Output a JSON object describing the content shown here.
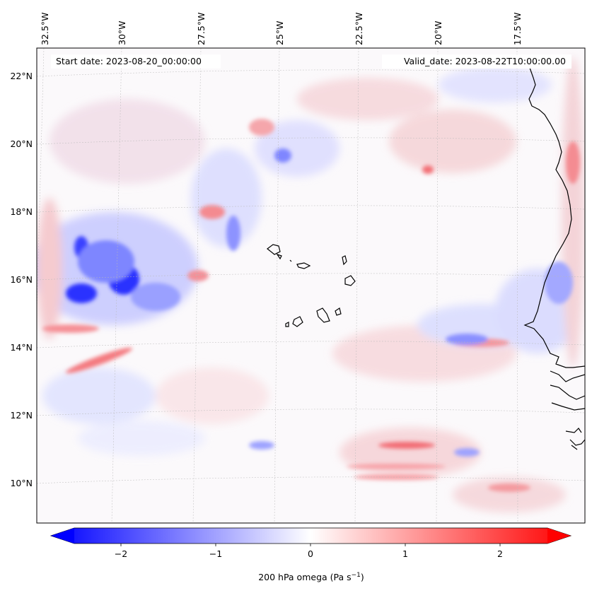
{
  "header": {
    "start_date": "Start date: 2023-08-20_00:00:00",
    "valid_date": "Valid_date: 2023-08-22T10:00:00.00"
  },
  "lon_labels": [
    "32.5°W",
    "30°W",
    "27.5°W",
    "25°W",
    "22.5°W",
    "20°W",
    "17.5°W"
  ],
  "lat_labels": [
    "22°N",
    "20°N",
    "18°N",
    "16°N",
    "14°N",
    "12°N",
    "10°N"
  ],
  "colorbar": {
    "ticks": [
      "−2",
      "−1",
      "0",
      "1",
      "2"
    ],
    "label": "200 hPa omega (Pa s",
    "label_sup": "−1",
    "label_close": ")",
    "range": [
      -2.6,
      2.6
    ],
    "colormap": "bwr",
    "min_color": "#0000ff",
    "mid_color": "#ffffff",
    "max_color": "#ff0000"
  },
  "map": {
    "variable": "200 hPa omega",
    "units": "Pa s^-1",
    "projection": "conic",
    "gridlines": true,
    "coastline_color": "#000000"
  }
}
